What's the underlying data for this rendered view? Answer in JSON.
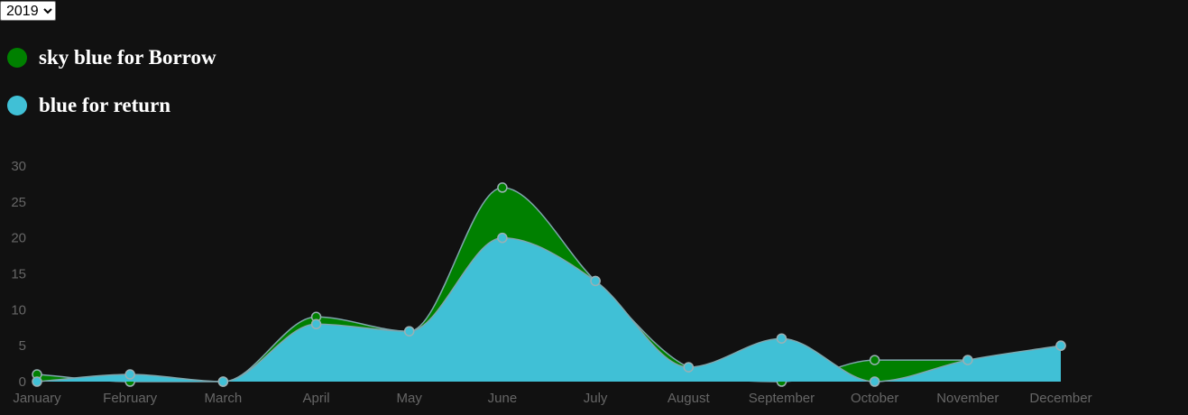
{
  "year_select": {
    "selected": "2019"
  },
  "legend": [
    {
      "label": "sky blue for Borrow",
      "color": "#008000"
    },
    {
      "label": "blue for return",
      "color": "#40c0d6"
    }
  ],
  "chart_data": {
    "type": "area",
    "categories": [
      "January",
      "February",
      "March",
      "April",
      "May",
      "June",
      "July",
      "August",
      "September",
      "October",
      "November",
      "December"
    ],
    "series": [
      {
        "name": "sky blue for Borrow",
        "color": "#008000",
        "values": [
          1,
          0,
          0,
          9,
          7,
          27,
          14,
          2,
          0,
          3,
          3,
          5
        ]
      },
      {
        "name": "blue for return",
        "color": "#40c0d6",
        "values": [
          0,
          1,
          0,
          8,
          7,
          20,
          14,
          2,
          6,
          0,
          3,
          5
        ]
      }
    ],
    "y_ticks": [
      0,
      5,
      10,
      15,
      20,
      25,
      30
    ],
    "ylim": [
      0,
      30
    ],
    "grid": false,
    "curve": "smooth"
  }
}
